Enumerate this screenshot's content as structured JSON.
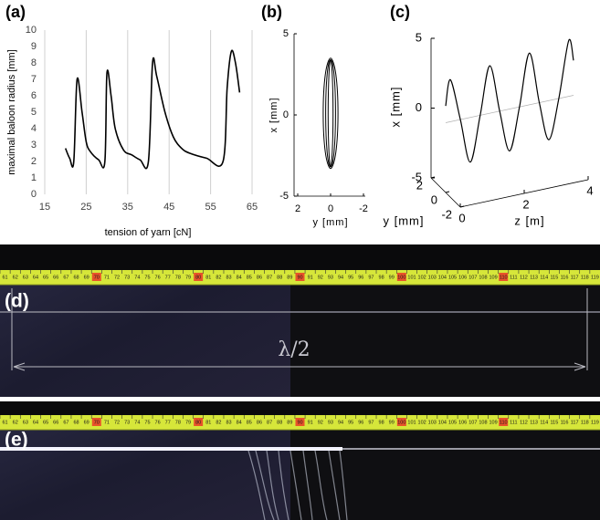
{
  "chart_data": [
    {
      "type": "line",
      "label": "(a)",
      "xlabel": "tension of yarn [cN]",
      "ylabel": "maximal baloon radius [mm]",
      "x": [
        20,
        21,
        22,
        22.8,
        24,
        25,
        26,
        28,
        29.5,
        30,
        31,
        32,
        34,
        36,
        38,
        40,
        41,
        42,
        44,
        46,
        48,
        50,
        54,
        58,
        59,
        60,
        61,
        62
      ],
      "values": [
        2.8,
        2.2,
        2.0,
        7.0,
        5.0,
        3.2,
        2.6,
        2.1,
        2.0,
        7.4,
        6.0,
        4.0,
        2.7,
        2.4,
        2.1,
        2.0,
        8.0,
        7.2,
        5.0,
        3.5,
        2.8,
        2.5,
        2.2,
        2.0,
        6.5,
        8.7,
        8.0,
        6.2
      ],
      "color": "#000000",
      "xlim": [
        15,
        65
      ],
      "xticks": [
        15,
        25,
        35,
        45,
        55,
        65
      ],
      "ylim": [
        0,
        10
      ],
      "yticks": [
        0,
        1,
        2,
        3,
        4,
        5,
        6,
        7,
        8,
        9,
        10
      ],
      "grid": "x"
    },
    {
      "type": "loop",
      "label": "(b)",
      "xlabel": "y [mm]",
      "ylabel": "x [mm]",
      "series": [
        {
          "color": "#000000",
          "x": [
            0.45,
            0.32,
            0,
            -0.32,
            -0.45,
            -0.32,
            0,
            0.32
          ],
          "values": [
            0.1,
            2.5,
            3.5,
            2.5,
            0.1,
            -2.3,
            -3.3,
            -2.3
          ]
        },
        {
          "color": "#000000",
          "x": [
            0.3,
            0.21,
            0,
            -0.21,
            -0.3,
            -0.21,
            0,
            0.21
          ],
          "values": [
            0.1,
            2.5,
            3.4,
            2.5,
            0.1,
            -2.3,
            -3.2,
            -2.3
          ]
        },
        {
          "color": "#000000",
          "x": [
            0.15,
            0.1,
            0,
            -0.1,
            -0.15,
            -0.1,
            0,
            0.1
          ],
          "values": [
            0.1,
            2.5,
            3.4,
            2.5,
            0.1,
            -2.3,
            -3.2,
            -2.3
          ]
        }
      ],
      "xlim": [
        2,
        -2
      ],
      "xticks": [
        2,
        0,
        -2
      ],
      "ylim": [
        -5,
        5
      ],
      "yticks": [
        -5,
        0,
        5
      ]
    },
    {
      "type": "line3d",
      "label": "(c)",
      "xlabel": "z [m]",
      "ylabel": "x [mm]",
      "depth_label": "y [mm]",
      "x": [
        0,
        0.15,
        0.46,
        0.77,
        1.08,
        1.38,
        1.69,
        2.0,
        2.31,
        2.62,
        2.93,
        3.23,
        3.54,
        3.85,
        4.0
      ],
      "values": [
        1.2,
        3.0,
        0,
        -3.2,
        0,
        3.4,
        0,
        -3.0,
        0,
        3.7,
        0,
        -2.8,
        0,
        4.0,
        2.5
      ],
      "color": "#000000",
      "xlim": [
        0,
        4
      ],
      "xticks": [
        0,
        2,
        4
      ],
      "ylim": [
        -5,
        5
      ],
      "yticks": [
        -5,
        0,
        5
      ],
      "depth_lim": [
        2,
        -2
      ],
      "depth_ticks": [
        2,
        0,
        -2
      ]
    }
  ],
  "photos": [
    {
      "label": "(d)",
      "annotation": "λ/2"
    },
    {
      "label": "(e)"
    }
  ],
  "ruler_labels": [
    61,
    62,
    63,
    64,
    65,
    66,
    67,
    68,
    69,
    70,
    71,
    72,
    73,
    74,
    75,
    76,
    77,
    78,
    79,
    80,
    81,
    82,
    83,
    84,
    85,
    86,
    87,
    88,
    89,
    90,
    91,
    92,
    93,
    94,
    95,
    96,
    97,
    98,
    99,
    100,
    101,
    102,
    103,
    104,
    105,
    106,
    107,
    108,
    109,
    110,
    111,
    112,
    113,
    114,
    115,
    116,
    117,
    118,
    119
  ]
}
